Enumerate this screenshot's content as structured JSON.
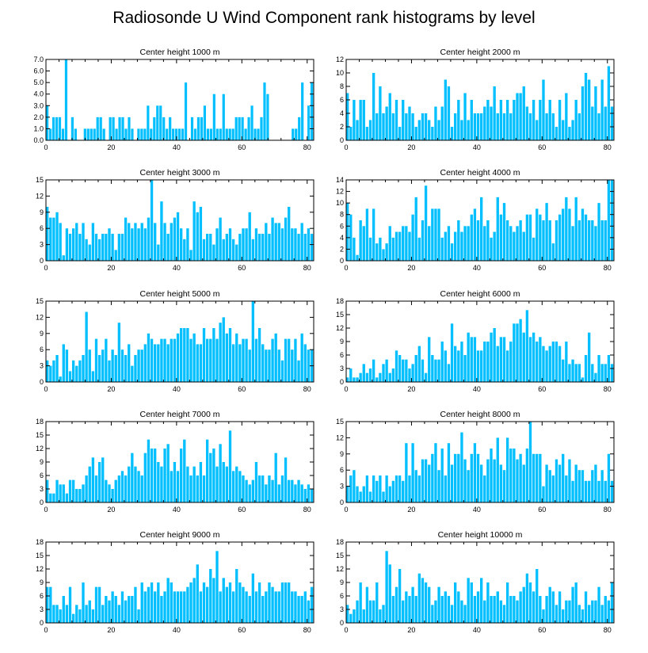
{
  "figure": {
    "title": "Radiosonde U Wind Component rank histograms by level",
    "bar_color": "#00BFFF",
    "axis_color": "#000000"
  },
  "chart_data": [
    {
      "type": "bar",
      "title": "Center height 1000 m",
      "xlim": [
        0,
        82
      ],
      "xticks": [
        0,
        20,
        40,
        60,
        80
      ],
      "ylim": [
        0,
        7
      ],
      "yticks": [
        0,
        1,
        2,
        3,
        4,
        5,
        6,
        7
      ],
      "ytick_labels": [
        "0.0",
        "1.0",
        "2.0",
        "3.0",
        "4.0",
        "5.0",
        "6.0",
        "7.0"
      ],
      "values": [
        3,
        1,
        2,
        2,
        2,
        1,
        7,
        0,
        2,
        1,
        0,
        0,
        1,
        1,
        1,
        1,
        2,
        2,
        1,
        0,
        2,
        2,
        1,
        2,
        2,
        1,
        2,
        1,
        0,
        1,
        1,
        1,
        3,
        1,
        2,
        3,
        3,
        2,
        1,
        2,
        1,
        1,
        1,
        1,
        5,
        0,
        2,
        1,
        2,
        2,
        3,
        1,
        1,
        4,
        1,
        1,
        4,
        1,
        1,
        1,
        2,
        2,
        2,
        1,
        2,
        3,
        1,
        1,
        2,
        5,
        4,
        0,
        0,
        0,
        0,
        0,
        0,
        0,
        1,
        1,
        2,
        5,
        0,
        3,
        5
      ]
    },
    {
      "type": "bar",
      "title": "Center height 2000 m",
      "xlim": [
        0,
        82
      ],
      "xticks": [
        0,
        20,
        40,
        60,
        80
      ],
      "ylim": [
        0,
        12
      ],
      "yticks": [
        0,
        2,
        4,
        6,
        8,
        10,
        12
      ],
      "ytick_labels": [
        "0",
        "2",
        "4",
        "6",
        "8",
        "10",
        "12"
      ],
      "values": [
        7,
        2,
        6,
        3,
        6,
        6,
        2,
        3,
        10,
        4,
        8,
        4,
        5,
        7,
        4,
        6,
        2,
        6,
        4,
        5,
        4,
        2,
        3,
        4,
        4,
        3,
        2,
        5,
        3,
        5,
        9,
        8,
        2,
        4,
        6,
        3,
        7,
        3,
        6,
        4,
        4,
        4,
        5,
        6,
        5,
        8,
        4,
        6,
        4,
        6,
        4,
        6,
        7,
        7,
        8,
        5,
        4,
        6,
        3,
        6,
        9,
        4,
        6,
        4,
        2,
        6,
        3,
        7,
        2,
        3,
        6,
        4,
        8,
        10,
        9,
        5,
        8,
        4,
        9,
        5,
        11,
        5
      ]
    },
    {
      "type": "bar",
      "title": "Center height 3000 m",
      "xlim": [
        0,
        82
      ],
      "xticks": [
        0,
        20,
        40,
        60,
        80
      ],
      "ylim": [
        0,
        15
      ],
      "yticks": [
        0,
        3,
        6,
        9,
        12,
        15
      ],
      "ytick_labels": [
        "0",
        "3",
        "6",
        "9",
        "12",
        "15"
      ],
      "values": [
        10,
        8,
        8,
        9,
        7,
        1,
        6,
        5,
        6,
        7,
        5,
        7,
        4,
        3,
        7,
        5,
        4,
        5,
        5,
        6,
        5,
        2,
        5,
        5,
        8,
        7,
        6,
        7,
        6,
        7,
        6,
        8,
        15,
        7,
        3,
        11,
        7,
        5,
        7,
        8,
        9,
        6,
        4,
        6,
        2,
        11,
        9,
        10,
        4,
        5,
        5,
        3,
        6,
        8,
        4,
        5,
        6,
        4,
        3,
        5,
        6,
        6,
        9,
        4,
        6,
        5,
        5,
        7,
        5,
        8,
        7,
        7,
        6,
        8,
        10,
        6,
        6,
        5,
        7,
        5,
        6,
        5
      ]
    },
    {
      "type": "bar",
      "title": "Center height 4000 m",
      "xlim": [
        0,
        82
      ],
      "xticks": [
        0,
        20,
        40,
        60,
        80
      ],
      "ylim": [
        0,
        14
      ],
      "yticks": [
        0,
        2,
        4,
        6,
        8,
        10,
        12,
        14
      ],
      "ytick_labels": [
        "0",
        "2",
        "4",
        "6",
        "8",
        "10",
        "12",
        "14"
      ],
      "values": [
        10,
        8,
        4,
        1,
        7,
        6,
        9,
        4,
        9,
        3,
        4,
        2,
        3,
        6,
        4,
        5,
        5,
        6,
        6,
        5,
        8,
        11,
        4,
        7,
        13,
        6,
        9,
        9,
        9,
        4,
        5,
        6,
        3,
        5,
        7,
        5,
        6,
        6,
        8,
        9,
        7,
        11,
        6,
        7,
        4,
        5,
        11,
        8,
        10,
        7,
        6,
        5,
        6,
        7,
        5,
        8,
        8,
        4,
        9,
        8,
        7,
        10,
        7,
        3,
        7,
        8,
        9,
        11,
        9,
        6,
        11,
        7,
        9,
        8,
        7,
        7,
        6,
        10,
        7,
        7,
        14,
        14
      ]
    },
    {
      "type": "bar",
      "title": "Center height 5000 m",
      "xlim": [
        0,
        82
      ],
      "xticks": [
        0,
        20,
        40,
        60,
        80
      ],
      "ylim": [
        0,
        15
      ],
      "yticks": [
        0,
        3,
        6,
        9,
        12,
        15
      ],
      "ytick_labels": [
        "0",
        "3",
        "6",
        "9",
        "12",
        "15"
      ],
      "values": [
        4,
        3,
        4,
        5,
        1,
        7,
        6,
        2,
        4,
        3,
        4,
        5,
        13,
        6,
        2,
        8,
        5,
        6,
        8,
        4,
        6,
        5,
        11,
        6,
        5,
        7,
        3,
        5,
        6,
        6,
        7,
        9,
        8,
        7,
        7,
        8,
        8,
        7,
        8,
        8,
        9,
        10,
        10,
        10,
        8,
        9,
        7,
        7,
        10,
        8,
        8,
        10,
        8,
        11,
        12,
        9,
        10,
        7,
        9,
        7,
        8,
        8,
        6,
        15,
        8,
        10,
        7,
        6,
        6,
        8,
        9,
        6,
        4,
        8,
        8,
        6,
        8,
        4,
        9,
        7,
        6,
        6
      ]
    },
    {
      "type": "bar",
      "title": "Center height 6000 m",
      "xlim": [
        0,
        82
      ],
      "xticks": [
        0,
        20,
        40,
        60,
        80
      ],
      "ylim": [
        0,
        18
      ],
      "yticks": [
        0,
        3,
        6,
        9,
        12,
        15,
        18
      ],
      "ytick_labels": [
        "0",
        "3",
        "6",
        "9",
        "12",
        "15",
        "18"
      ],
      "values": [
        1,
        3,
        1,
        1,
        2,
        4,
        2,
        3,
        5,
        1,
        2,
        4,
        5,
        2,
        3,
        7,
        6,
        5,
        5,
        3,
        4,
        6,
        8,
        5,
        2,
        10,
        6,
        5,
        5,
        9,
        7,
        4,
        13,
        8,
        7,
        9,
        6,
        11,
        10,
        10,
        7,
        7,
        9,
        9,
        11,
        12,
        8,
        10,
        10,
        7,
        9,
        13,
        13,
        14,
        11,
        16,
        10,
        11,
        9,
        10,
        8,
        7,
        8,
        9,
        9,
        8,
        5,
        9,
        4,
        5,
        4,
        4,
        1,
        6,
        11,
        4,
        2,
        6,
        4,
        4,
        6,
        4
      ]
    },
    {
      "type": "bar",
      "title": "Center height 7000 m",
      "xlim": [
        0,
        82
      ],
      "xticks": [
        0,
        20,
        40,
        60,
        80
      ],
      "ylim": [
        0,
        18
      ],
      "yticks": [
        0,
        3,
        6,
        9,
        12,
        15,
        18
      ],
      "ytick_labels": [
        "0",
        "3",
        "6",
        "9",
        "12",
        "15",
        "18"
      ],
      "values": [
        5,
        2,
        2,
        5,
        4,
        4,
        2,
        5,
        5,
        3,
        3,
        4,
        6,
        8,
        10,
        6,
        9,
        10,
        5,
        4,
        3,
        5,
        6,
        7,
        6,
        8,
        11,
        8,
        7,
        6,
        11,
        14,
        12,
        12,
        9,
        8,
        12,
        13,
        7,
        9,
        7,
        12,
        14,
        8,
        6,
        8,
        6,
        9,
        6,
        14,
        11,
        12,
        8,
        13,
        9,
        8,
        16,
        7,
        8,
        7,
        6,
        5,
        4,
        5,
        9,
        6,
        6,
        4,
        6,
        5,
        11,
        4,
        6,
        10,
        5,
        5,
        4,
        5,
        4,
        3,
        4,
        3
      ]
    },
    {
      "type": "bar",
      "title": "Center height 8000 m",
      "xlim": [
        0,
        82
      ],
      "xticks": [
        0,
        20,
        40,
        60,
        80
      ],
      "ylim": [
        0,
        15
      ],
      "yticks": [
        0,
        3,
        6,
        9,
        12,
        15
      ],
      "ytick_labels": [
        "0",
        "3",
        "6",
        "9",
        "12",
        "15"
      ],
      "values": [
        3,
        5,
        6,
        3,
        2,
        3,
        5,
        2,
        5,
        4,
        5,
        2,
        5,
        3,
        4,
        5,
        5,
        4,
        11,
        5,
        11,
        6,
        5,
        8,
        8,
        7,
        9,
        11,
        6,
        10,
        5,
        11,
        7,
        9,
        9,
        13,
        8,
        6,
        9,
        11,
        9,
        7,
        5,
        8,
        10,
        8,
        12,
        7,
        6,
        12,
        10,
        10,
        8,
        9,
        7,
        10,
        15,
        9,
        9,
        9,
        3,
        7,
        6,
        5,
        8,
        7,
        9,
        5,
        8,
        4,
        7,
        6,
        6,
        4,
        4,
        6,
        7,
        4,
        6,
        4,
        9,
        4
      ]
    },
    {
      "type": "bar",
      "title": "Center height 9000 m",
      "xlim": [
        0,
        82
      ],
      "xticks": [
        0,
        20,
        40,
        60,
        80
      ],
      "ylim": [
        0,
        18
      ],
      "yticks": [
        0,
        3,
        6,
        9,
        12,
        15,
        18
      ],
      "ytick_labels": [
        "0",
        "3",
        "6",
        "9",
        "12",
        "15",
        "18"
      ],
      "values": [
        8,
        8,
        4,
        4,
        3,
        6,
        4,
        8,
        2,
        4,
        3,
        9,
        4,
        5,
        3,
        8,
        8,
        4,
        6,
        5,
        7,
        6,
        4,
        7,
        5,
        6,
        6,
        8,
        3,
        9,
        7,
        8,
        9,
        7,
        9,
        6,
        7,
        10,
        9,
        7,
        7,
        7,
        7,
        8,
        9,
        10,
        13,
        7,
        9,
        8,
        12,
        10,
        16,
        7,
        10,
        8,
        9,
        7,
        12,
        9,
        8,
        7,
        6,
        11,
        7,
        9,
        6,
        7,
        9,
        8,
        7,
        7,
        9,
        9,
        9,
        7,
        7,
        6,
        6,
        7,
        5,
        8
      ]
    },
    {
      "type": "bar",
      "title": "Center height 10000 m",
      "xlim": [
        0,
        82
      ],
      "xticks": [
        0,
        20,
        40,
        60,
        80
      ],
      "ylim": [
        0,
        18
      ],
      "yticks": [
        0,
        3,
        6,
        9,
        12,
        15,
        18
      ],
      "ytick_labels": [
        "0",
        "3",
        "6",
        "9",
        "12",
        "15",
        "18"
      ],
      "values": [
        4,
        2,
        3,
        5,
        9,
        3,
        8,
        5,
        5,
        9,
        3,
        4,
        16,
        13,
        6,
        8,
        12,
        5,
        7,
        6,
        8,
        6,
        11,
        10,
        9,
        8,
        4,
        5,
        8,
        6,
        7,
        6,
        4,
        9,
        7,
        5,
        4,
        10,
        9,
        6,
        7,
        10,
        5,
        9,
        6,
        6,
        7,
        5,
        4,
        9,
        6,
        6,
        5,
        7,
        8,
        11,
        9,
        7,
        12,
        6,
        3,
        6,
        8,
        7,
        4,
        7,
        3,
        5,
        5,
        8,
        9,
        4,
        3,
        7,
        4,
        5,
        5,
        8,
        4,
        6,
        5,
        9
      ]
    }
  ]
}
